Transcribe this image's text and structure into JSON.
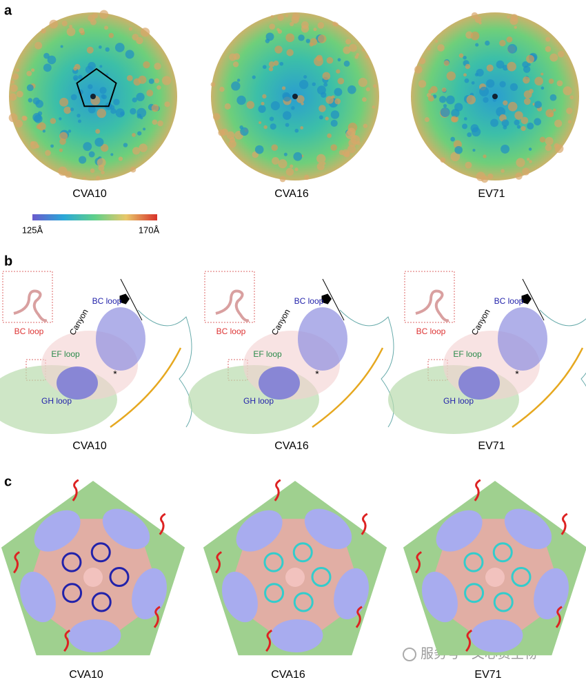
{
  "panel_a": {
    "label": "a",
    "captions": [
      "CVA10",
      "CVA16",
      "EV71"
    ],
    "colorbar": {
      "min_label": "125Å",
      "max_label": "170Å"
    }
  },
  "panel_b": {
    "label": "b",
    "captions": [
      "CVA10",
      "CVA16",
      "EV71"
    ],
    "annotations": {
      "bc_loop_inset": "BC loop",
      "bc_loop": "BC loop",
      "canyon": "Canyon",
      "ef_loop": "EF loop",
      "gh_loop": "GH loop",
      "asterisk": "*"
    }
  },
  "panel_c": {
    "label": "c",
    "captions": [
      "CVA10",
      "CVA16",
      "EV71"
    ]
  },
  "watermark": "服务号 · 文心资生物"
}
